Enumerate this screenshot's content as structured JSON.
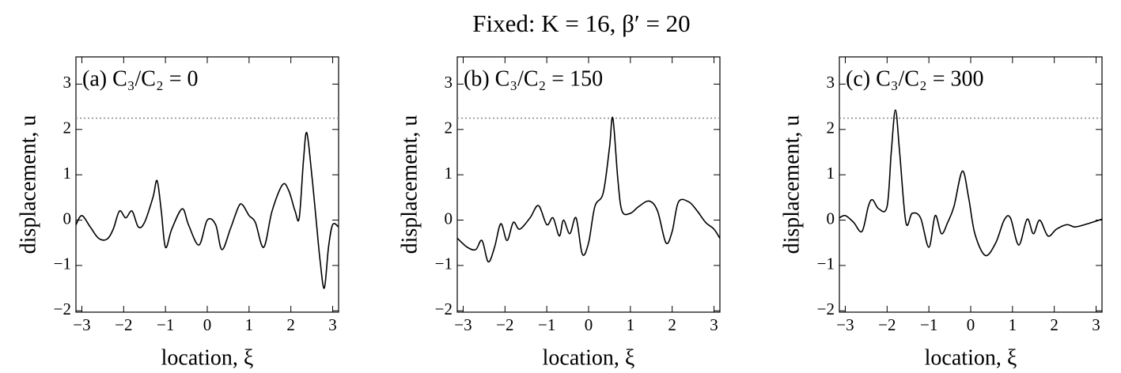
{
  "title": "Fixed: K = 16, β′ = 20",
  "chart_data": [
    {
      "type": "line",
      "annotation": "(a) C₃/C₂ = 0",
      "xlabel": "location, ξ",
      "ylabel": "displacement, u",
      "xlim": [
        -3.1416,
        3.1416
      ],
      "ylim": [
        -2.03,
        3.6
      ],
      "xticks": [
        {
          "value": -3,
          "label": "−3"
        },
        {
          "value": -2,
          "label": "−2"
        },
        {
          "value": -1,
          "label": "−1"
        },
        0,
        1,
        2,
        3
      ],
      "yticks": [
        {
          "value": -2,
          "label": "−2"
        },
        {
          "value": -1,
          "label": "−1"
        },
        0,
        1,
        2,
        3
      ],
      "threshold": 2.25,
      "color": "#000000",
      "x": [
        -3.14,
        -3.0,
        -2.8,
        -2.6,
        -2.4,
        -2.25,
        -2.1,
        -1.95,
        -1.8,
        -1.65,
        -1.5,
        -1.3,
        -1.2,
        -1.1,
        -1.0,
        -0.85,
        -0.6,
        -0.45,
        -0.2,
        0.0,
        0.2,
        0.35,
        0.55,
        0.75,
        0.85,
        1.0,
        1.15,
        1.35,
        1.55,
        1.8,
        1.95,
        2.1,
        2.2,
        2.3,
        2.38,
        2.5,
        2.6,
        2.7,
        2.8,
        2.9,
        3.0,
        3.14
      ],
      "values": [
        -0.1,
        0.1,
        -0.15,
        -0.4,
        -0.42,
        -0.2,
        0.2,
        0.05,
        0.2,
        -0.15,
        -0.05,
        0.5,
        0.87,
        0.2,
        -0.6,
        -0.2,
        0.25,
        -0.1,
        -0.55,
        0.0,
        -0.1,
        -0.65,
        -0.2,
        0.3,
        0.33,
        0.1,
        -0.05,
        -0.6,
        0.2,
        0.78,
        0.65,
        0.2,
        0.05,
        1.3,
        1.93,
        1.0,
        0.05,
        -0.9,
        -1.5,
        -0.6,
        -0.1,
        -0.15
      ]
    },
    {
      "type": "line",
      "annotation": "(b) C₃/C₂ = 150",
      "xlabel": "location, ξ",
      "ylabel": "displacement, u",
      "xlim": [
        -3.1416,
        3.1416
      ],
      "ylim": [
        -2.03,
        3.6
      ],
      "xticks": [
        {
          "value": -3,
          "label": "−3"
        },
        {
          "value": -2,
          "label": "−2"
        },
        {
          "value": -1,
          "label": "−1"
        },
        0,
        1,
        2,
        3
      ],
      "yticks": [
        {
          "value": -2,
          "label": "−2"
        },
        {
          "value": -1,
          "label": "−1"
        },
        0,
        1,
        2,
        3
      ],
      "threshold": 2.25,
      "color": "#000000",
      "x": [
        -3.14,
        -2.9,
        -2.7,
        -2.55,
        -2.4,
        -2.25,
        -2.1,
        -1.95,
        -1.8,
        -1.65,
        -1.4,
        -1.2,
        -1.0,
        -0.85,
        -0.7,
        -0.6,
        -0.45,
        -0.3,
        -0.15,
        0.0,
        0.15,
        0.35,
        0.5,
        0.58,
        0.7,
        0.8,
        1.0,
        1.2,
        1.45,
        1.65,
        1.85,
        2.0,
        2.15,
        2.4,
        2.6,
        2.8,
        3.0,
        3.14
      ],
      "values": [
        -0.4,
        -0.6,
        -0.65,
        -0.45,
        -0.92,
        -0.6,
        -0.08,
        -0.45,
        -0.05,
        -0.2,
        0.05,
        0.32,
        -0.1,
        0.05,
        -0.35,
        0.0,
        -0.3,
        0.05,
        -0.75,
        -0.5,
        0.3,
        0.6,
        1.6,
        2.25,
        0.9,
        0.2,
        0.15,
        0.3,
        0.42,
        0.2,
        -0.5,
        -0.25,
        0.4,
        0.4,
        0.2,
        -0.05,
        -0.2,
        -0.4
      ]
    },
    {
      "type": "line",
      "annotation": "(c) C₃/C₂ = 300",
      "xlabel": "location, ξ",
      "ylabel": "displacement, u",
      "xlim": [
        -3.1416,
        3.1416
      ],
      "ylim": [
        -2.03,
        3.6
      ],
      "xticks": [
        {
          "value": -3,
          "label": "−3"
        },
        {
          "value": -2,
          "label": "−2"
        },
        {
          "value": -1,
          "label": "−1"
        },
        0,
        1,
        2,
        3
      ],
      "yticks": [
        {
          "value": -2,
          "label": "−2"
        },
        {
          "value": -1,
          "label": "−1"
        },
        0,
        1,
        2,
        3
      ],
      "threshold": 2.25,
      "color": "#000000",
      "x": [
        -3.14,
        -3.0,
        -2.8,
        -2.6,
        -2.45,
        -2.35,
        -2.2,
        -2.0,
        -1.9,
        -1.8,
        -1.7,
        -1.55,
        -1.4,
        -1.2,
        -1.0,
        -0.85,
        -0.7,
        -0.55,
        -0.4,
        -0.2,
        -0.05,
        0.1,
        0.35,
        0.6,
        0.8,
        0.95,
        1.15,
        1.35,
        1.5,
        1.65,
        1.85,
        2.05,
        2.3,
        2.5,
        2.8,
        3.14
      ],
      "values": [
        0.05,
        0.1,
        -0.05,
        -0.25,
        0.3,
        0.45,
        0.25,
        0.3,
        1.5,
        2.43,
        1.5,
        -0.05,
        0.15,
        0.05,
        -0.6,
        0.1,
        -0.3,
        -0.05,
        0.3,
        1.08,
        0.5,
        -0.3,
        -0.78,
        -0.5,
        0.0,
        0.05,
        -0.55,
        0.02,
        -0.3,
        0.0,
        -0.35,
        -0.2,
        -0.1,
        -0.15,
        -0.08,
        0.02
      ]
    }
  ]
}
